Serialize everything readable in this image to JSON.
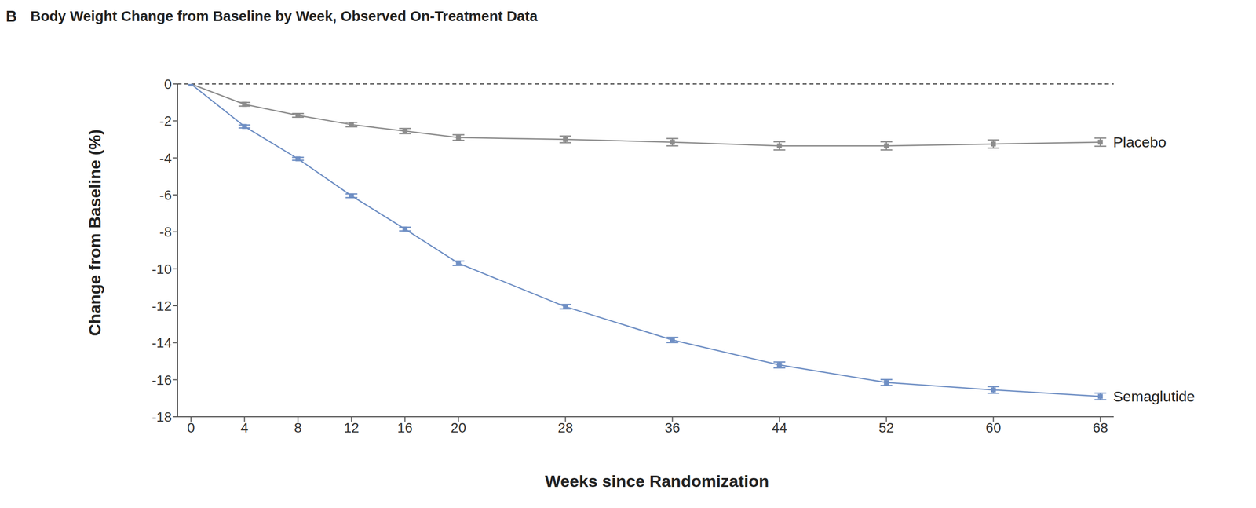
{
  "chart_data": {
    "type": "line",
    "title": "Body Weight Change from Baseline by Week, Observed On-Treatment Data",
    "annotations": [
      "B"
    ],
    "x_label": "Weeks since Randomization",
    "y_label": "Change from Baseline (%)",
    "x": [
      0,
      4,
      8,
      12,
      16,
      20,
      28,
      36,
      44,
      52,
      60,
      68
    ],
    "series": [
      {
        "name": "Placebo",
        "color": "#8c8c8c",
        "marker": "square",
        "line_style": "solid",
        "values": [
          0,
          -1.1,
          -1.7,
          -2.2,
          -2.55,
          -2.9,
          -3.0,
          -3.15,
          -3.35,
          -3.35,
          -3.25,
          -3.15
        ],
        "errors": [
          0,
          0.1,
          0.1,
          0.12,
          0.14,
          0.15,
          0.18,
          0.2,
          0.22,
          0.22,
          0.22,
          0.22
        ]
      },
      {
        "name": "Semaglutide",
        "color": "#6f8fc4",
        "marker": "square",
        "line_style": "solid",
        "values": [
          0,
          -2.3,
          -4.05,
          -6.05,
          -7.85,
          -9.7,
          -12.05,
          -13.85,
          -15.2,
          -16.15,
          -16.55,
          -16.9
        ],
        "errors": [
          0,
          0.08,
          0.08,
          0.1,
          0.1,
          0.12,
          0.12,
          0.14,
          0.16,
          0.16,
          0.18,
          0.18
        ]
      }
    ],
    "xlim": [
      -1,
      69
    ],
    "xticks": [
      0,
      4,
      8,
      12,
      16,
      20,
      28,
      36,
      44,
      52,
      60,
      68
    ],
    "ylim": [
      -18,
      0
    ],
    "yticks": [
      -18,
      -16,
      -14,
      -12,
      -10,
      -8,
      -6,
      -4,
      -2,
      0
    ],
    "grid": false
  }
}
